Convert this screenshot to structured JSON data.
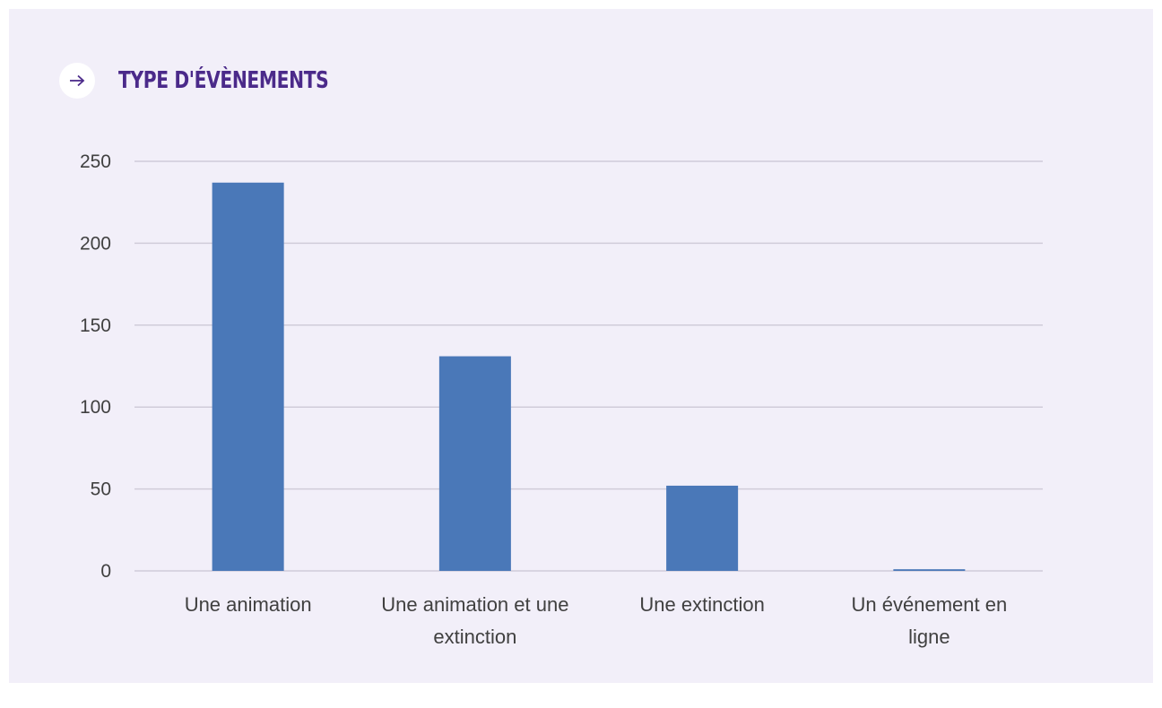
{
  "header": {
    "title": "TYPE D'ÉVÈNEMENTS",
    "arrow_icon": "arrow-right-icon"
  },
  "colors": {
    "background": "#f2eff9",
    "title": "#4b2a8a",
    "bar": "#4a78b8",
    "grid": "#d0ccd9"
  },
  "chart_data": {
    "type": "bar",
    "title": "",
    "xlabel": "",
    "ylabel": "",
    "categories": [
      [
        "Une animation"
      ],
      [
        "Une animation et une",
        "extinction"
      ],
      [
        "Une extinction"
      ],
      [
        "Un événement en",
        "ligne"
      ]
    ],
    "values": [
      237,
      131,
      52,
      1
    ],
    "ylim": [
      0,
      250
    ],
    "yticks": [
      0,
      50,
      100,
      150,
      200,
      250
    ],
    "grid": true,
    "legend": "none"
  }
}
